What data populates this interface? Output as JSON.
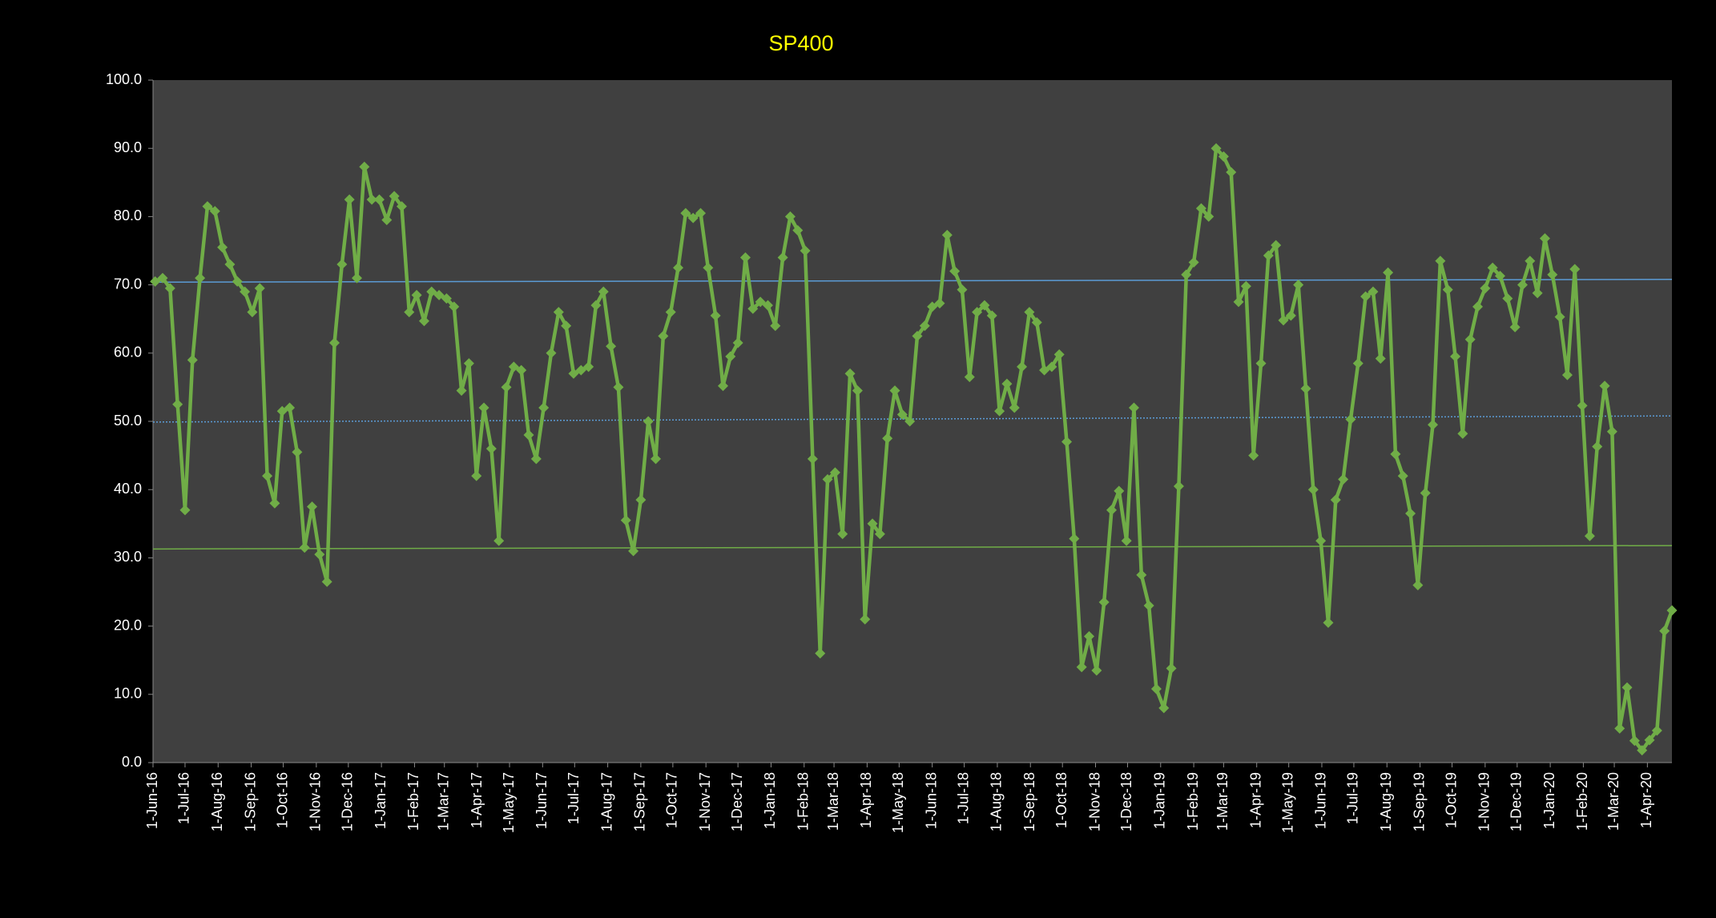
{
  "chart_data": {
    "type": "line",
    "title": "SP400",
    "x": [
      "2016-06-03",
      "2016-06-10",
      "2016-06-17",
      "2016-06-24",
      "2016-07-01",
      "2016-07-08",
      "2016-07-15",
      "2016-07-22",
      "2016-07-29",
      "2016-08-05",
      "2016-08-12",
      "2016-08-19",
      "2016-08-26",
      "2016-09-02",
      "2016-09-09",
      "2016-09-16",
      "2016-09-23",
      "2016-09-30",
      "2016-10-07",
      "2016-10-14",
      "2016-10-21",
      "2016-10-28",
      "2016-11-04",
      "2016-11-11",
      "2016-11-18",
      "2016-11-25",
      "2016-12-02",
      "2016-12-09",
      "2016-12-16",
      "2016-12-23",
      "2016-12-30",
      "2017-01-06",
      "2017-01-13",
      "2017-01-20",
      "2017-01-27",
      "2017-02-03",
      "2017-02-10",
      "2017-02-17",
      "2017-02-24",
      "2017-03-03",
      "2017-03-10",
      "2017-03-17",
      "2017-03-24",
      "2017-03-31",
      "2017-04-07",
      "2017-04-14",
      "2017-04-21",
      "2017-04-28",
      "2017-05-05",
      "2017-05-12",
      "2017-05-19",
      "2017-05-26",
      "2017-06-02",
      "2017-06-09",
      "2017-06-16",
      "2017-06-23",
      "2017-06-30",
      "2017-07-07",
      "2017-07-14",
      "2017-07-21",
      "2017-07-28",
      "2017-08-04",
      "2017-08-11",
      "2017-08-18",
      "2017-08-25",
      "2017-09-01",
      "2017-09-08",
      "2017-09-15",
      "2017-09-22",
      "2017-09-29",
      "2017-10-06",
      "2017-10-13",
      "2017-10-20",
      "2017-10-27",
      "2017-11-03",
      "2017-11-10",
      "2017-11-17",
      "2017-11-24",
      "2017-12-01",
      "2017-12-08",
      "2017-12-15",
      "2017-12-22",
      "2017-12-29",
      "2018-01-05",
      "2018-01-12",
      "2018-01-19",
      "2018-01-26",
      "2018-02-02",
      "2018-02-09",
      "2018-02-16",
      "2018-02-23",
      "2018-03-02",
      "2018-03-09",
      "2018-03-16",
      "2018-03-23",
      "2018-03-30",
      "2018-04-06",
      "2018-04-13",
      "2018-04-20",
      "2018-04-27",
      "2018-05-04",
      "2018-05-11",
      "2018-05-18",
      "2018-05-25",
      "2018-06-01",
      "2018-06-08",
      "2018-06-15",
      "2018-06-22",
      "2018-06-29",
      "2018-07-06",
      "2018-07-13",
      "2018-07-20",
      "2018-07-27",
      "2018-08-03",
      "2018-08-10",
      "2018-08-17",
      "2018-08-24",
      "2018-08-31",
      "2018-09-07",
      "2018-09-14",
      "2018-09-21",
      "2018-09-28",
      "2018-10-05",
      "2018-10-12",
      "2018-10-19",
      "2018-10-26",
      "2018-11-02",
      "2018-11-09",
      "2018-11-16",
      "2018-11-23",
      "2018-11-30",
      "2018-12-07",
      "2018-12-14",
      "2018-12-21",
      "2018-12-28",
      "2019-01-04",
      "2019-01-11",
      "2019-01-18",
      "2019-01-25",
      "2019-02-01",
      "2019-02-08",
      "2019-02-15",
      "2019-02-22",
      "2019-03-01",
      "2019-03-08",
      "2019-03-15",
      "2019-03-22",
      "2019-03-29",
      "2019-04-05",
      "2019-04-12",
      "2019-04-19",
      "2019-04-26",
      "2019-05-03",
      "2019-05-10",
      "2019-05-17",
      "2019-05-24",
      "2019-05-31",
      "2019-06-07",
      "2019-06-14",
      "2019-06-21",
      "2019-06-28",
      "2019-07-05",
      "2019-07-12",
      "2019-07-19",
      "2019-07-26",
      "2019-08-02",
      "2019-08-09",
      "2019-08-16",
      "2019-08-23",
      "2019-08-30",
      "2019-09-06",
      "2019-09-13",
      "2019-09-20",
      "2019-09-27",
      "2019-10-04",
      "2019-10-11",
      "2019-10-18",
      "2019-10-25",
      "2019-11-01",
      "2019-11-08",
      "2019-11-15",
      "2019-11-22",
      "2019-11-29",
      "2019-12-06",
      "2019-12-13",
      "2019-12-20",
      "2019-12-27",
      "2020-01-03",
      "2020-01-10",
      "2020-01-17",
      "2020-01-24",
      "2020-01-31",
      "2020-02-07",
      "2020-02-14",
      "2020-02-21",
      "2020-02-28",
      "2020-03-06",
      "2020-03-13",
      "2020-03-20",
      "2020-03-27",
      "2020-04-03",
      "2020-04-10",
      "2020-04-17",
      "2020-04-24"
    ],
    "series": [
      {
        "color": "#70ad47",
        "values": [
          70.5,
          71,
          69.5,
          52.5,
          37,
          59,
          71,
          81.5,
          80.8,
          75.5,
          73,
          70.5,
          69,
          66,
          69.5,
          42,
          38,
          51.5,
          52,
          45.5,
          31.5,
          37.5,
          30.5,
          26.5,
          61.5,
          73,
          82.5,
          71,
          87.3,
          82.5,
          82.5,
          79.5,
          83,
          81.5,
          66,
          68.5,
          64.7,
          69,
          68.5,
          68,
          66.8,
          54.5,
          58.5,
          42,
          52,
          46,
          32.5,
          55,
          58,
          57.5,
          48,
          44.5,
          52,
          60,
          66,
          64,
          57,
          57.5,
          58,
          67,
          69,
          61,
          55,
          35.5,
          31,
          38.5,
          50,
          44.5,
          62.5,
          66,
          72.5,
          80.5,
          79.8,
          80.5,
          72.5,
          65.5,
          55.2,
          59.5,
          61.5,
          74,
          66.5,
          67.5,
          67,
          64,
          74,
          80,
          78,
          75,
          44.5,
          16,
          41.5,
          42.5,
          33.5,
          57,
          54.5,
          21,
          35,
          33.5,
          47.5,
          54.5,
          51,
          50,
          62.5,
          64,
          66.8,
          67.3,
          77.3,
          72,
          69.3,
          56.5,
          66,
          67,
          65.5,
          51.5,
          55.5,
          52,
          58,
          66,
          64.5,
          57.5,
          58,
          59.8,
          47,
          32.8,
          14,
          18.5,
          13.5,
          23.5,
          37,
          39.8,
          32.5,
          52,
          27.5,
          23,
          10.8,
          8,
          13.8,
          40.5,
          71.5,
          73.3,
          81.2,
          80,
          90,
          88.8,
          86.5,
          67.5,
          69.8,
          45,
          58.5,
          74.3,
          75.8,
          64.8,
          65.5,
          70,
          54.8,
          40,
          32.5,
          20.5,
          38.5,
          41.5,
          50.3,
          58.5,
          68.3,
          69,
          59.2,
          71.8,
          45.2,
          42,
          36.5,
          26,
          39.5,
          49.5,
          73.5,
          69.3,
          59.5,
          48.2,
          62,
          66.8,
          69.5,
          72.5,
          71.3,
          68,
          63.8,
          70,
          73.5,
          68.8,
          76.8,
          71.5,
          65.3,
          56.8,
          72.3,
          52.3,
          33.2,
          46.3,
          55.2,
          48.5,
          5,
          11,
          3.2,
          1.8,
          3.3,
          4.7,
          19.3,
          22.3
        ]
      }
    ],
    "reference_lines": [
      {
        "color": "#5b9bd5",
        "style": "solid",
        "values": [
          70.4,
          70.8
        ]
      },
      {
        "color": "#5b9bd5",
        "style": "dotted",
        "values": [
          49.9,
          50.8
        ]
      },
      {
        "color": "#70ad47",
        "style": "solid",
        "values": [
          31.3,
          31.8
        ]
      }
    ],
    "xlim": [
      "2016-06-01",
      "2020-04-24"
    ],
    "xticks": [
      {
        "value": "2016-06-01",
        "label": "1-Jun-16"
      },
      {
        "value": "2016-07-01",
        "label": "1-Jul-16"
      },
      {
        "value": "2016-08-01",
        "label": "1-Aug-16"
      },
      {
        "value": "2016-09-01",
        "label": "1-Sep-16"
      },
      {
        "value": "2016-10-01",
        "label": "1-Oct-16"
      },
      {
        "value": "2016-11-01",
        "label": "1-Nov-16"
      },
      {
        "value": "2016-12-01",
        "label": "1-Dec-16"
      },
      {
        "value": "2017-01-01",
        "label": "1-Jan-17"
      },
      {
        "value": "2017-02-01",
        "label": "1-Feb-17"
      },
      {
        "value": "2017-03-01",
        "label": "1-Mar-17"
      },
      {
        "value": "2017-04-01",
        "label": "1-Apr-17"
      },
      {
        "value": "2017-05-01",
        "label": "1-May-17"
      },
      {
        "value": "2017-06-01",
        "label": "1-Jun-17"
      },
      {
        "value": "2017-07-01",
        "label": "1-Jul-17"
      },
      {
        "value": "2017-08-01",
        "label": "1-Aug-17"
      },
      {
        "value": "2017-09-01",
        "label": "1-Sep-17"
      },
      {
        "value": "2017-10-01",
        "label": "1-Oct-17"
      },
      {
        "value": "2017-11-01",
        "label": "1-Nov-17"
      },
      {
        "value": "2017-12-01",
        "label": "1-Dec-17"
      },
      {
        "value": "2018-01-01",
        "label": "1-Jan-18"
      },
      {
        "value": "2018-02-01",
        "label": "1-Feb-18"
      },
      {
        "value": "2018-03-01",
        "label": "1-Mar-18"
      },
      {
        "value": "2018-04-01",
        "label": "1-Apr-18"
      },
      {
        "value": "2018-05-01",
        "label": "1-May-18"
      },
      {
        "value": "2018-06-01",
        "label": "1-Jun-18"
      },
      {
        "value": "2018-07-01",
        "label": "1-Jul-18"
      },
      {
        "value": "2018-08-01",
        "label": "1-Aug-18"
      },
      {
        "value": "2018-09-01",
        "label": "1-Sep-18"
      },
      {
        "value": "2018-10-01",
        "label": "1-Oct-18"
      },
      {
        "value": "2018-11-01",
        "label": "1-Nov-18"
      },
      {
        "value": "2018-12-01",
        "label": "1-Dec-18"
      },
      {
        "value": "2019-01-01",
        "label": "1-Jan-19"
      },
      {
        "value": "2019-02-01",
        "label": "1-Feb-19"
      },
      {
        "value": "2019-03-01",
        "label": "1-Mar-19"
      },
      {
        "value": "2019-04-01",
        "label": "1-Apr-19"
      },
      {
        "value": "2019-05-01",
        "label": "1-May-19"
      },
      {
        "value": "2019-06-01",
        "label": "1-Jun-19"
      },
      {
        "value": "2019-07-01",
        "label": "1-Jul-19"
      },
      {
        "value": "2019-08-01",
        "label": "1-Aug-19"
      },
      {
        "value": "2019-09-01",
        "label": "1-Sep-19"
      },
      {
        "value": "2019-10-01",
        "label": "1-Oct-19"
      },
      {
        "value": "2019-11-01",
        "label": "1-Nov-19"
      },
      {
        "value": "2019-12-01",
        "label": "1-Dec-19"
      },
      {
        "value": "2020-01-01",
        "label": "1-Jan-20"
      },
      {
        "value": "2020-02-01",
        "label": "1-Feb-20"
      },
      {
        "value": "2020-03-01",
        "label": "1-Mar-20"
      },
      {
        "value": "2020-04-01",
        "label": "1-Apr-20"
      }
    ],
    "ylim": [
      0,
      100
    ],
    "yticks": [
      {
        "value": 0,
        "label": "0.0"
      },
      {
        "value": 10,
        "label": "10.0"
      },
      {
        "value": 20,
        "label": "20.0"
      },
      {
        "value": 30,
        "label": "30.0"
      },
      {
        "value": 40,
        "label": "40.0"
      },
      {
        "value": 50,
        "label": "50.0"
      },
      {
        "value": 60,
        "label": "60.0"
      },
      {
        "value": 70,
        "label": "70.0"
      },
      {
        "value": 80,
        "label": "80.0"
      },
      {
        "value": 90,
        "label": "90.0"
      },
      {
        "value": 100,
        "label": "100.0"
      }
    ],
    "title_color": "#ffff00",
    "background": "#000000",
    "plot_background": "#404040",
    "marker": "diamond"
  }
}
